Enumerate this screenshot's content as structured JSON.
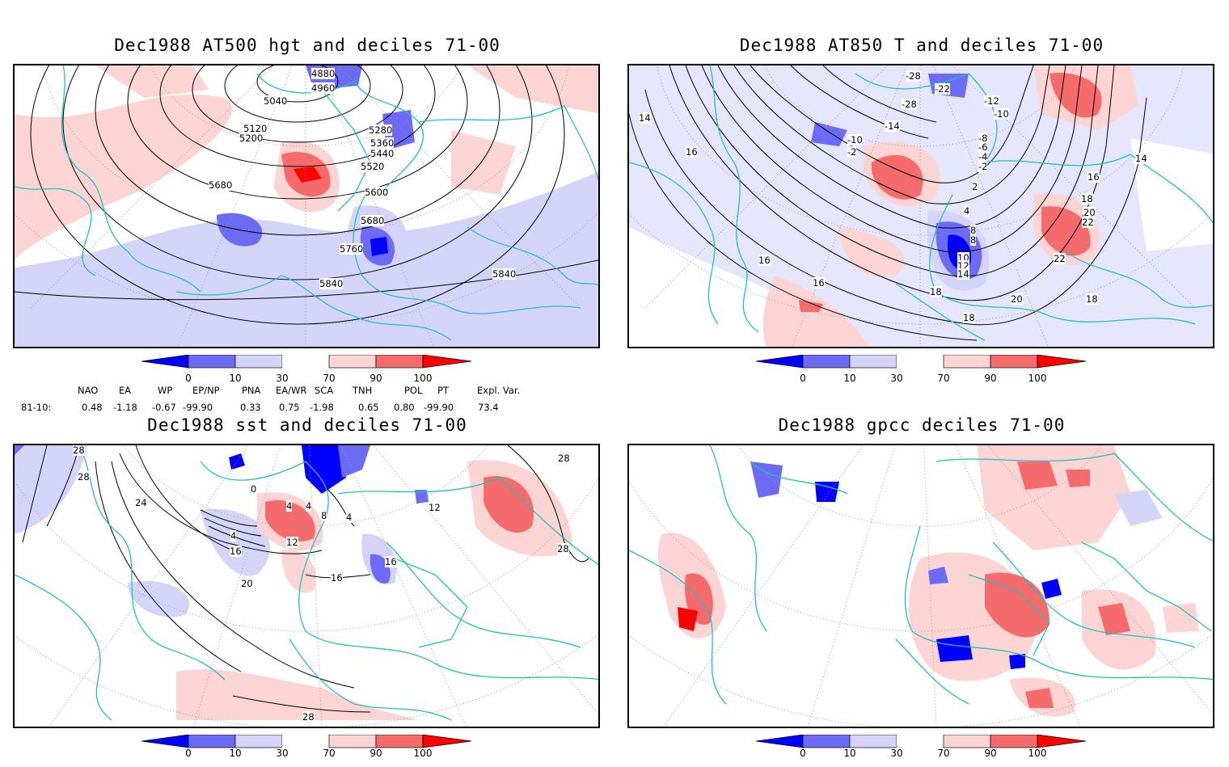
{
  "panels": [
    {
      "title": "Dec1988 AT500 hgt and deciles 71-00",
      "labels": [
        "4880",
        "4960",
        "5040",
        "5120",
        "5200",
        "5280",
        "5360",
        "5440",
        "5520",
        "5600",
        "5680",
        "5680",
        "5760",
        "5840",
        "5840"
      ]
    },
    {
      "title": "Dec1988 AT850 T and deciles 71-00",
      "labels": [
        "-28",
        "-22",
        "-28",
        "-14",
        "-12",
        "-10",
        "-8",
        "-6",
        "-4",
        "-2",
        "-10",
        "-2",
        "2",
        "4",
        "8",
        "8",
        "10",
        "12",
        "14",
        "14",
        "16",
        "16",
        "16",
        "16",
        "18",
        "18",
        "20",
        "22",
        "22",
        "18",
        "18",
        "20",
        "14"
      ]
    },
    {
      "title": "Dec1988 sst and deciles 71-00",
      "labels": [
        "28",
        "28",
        "24",
        "0",
        "4",
        "4",
        "4",
        "8",
        "12",
        "16",
        "20",
        "16",
        "16",
        "28",
        "28",
        "28",
        "4",
        "12"
      ]
    },
    {
      "title": "Dec1988 gpcc deciles 71-00",
      "labels": []
    }
  ],
  "colorbar": {
    "ticks": [
      "0",
      "10",
      "30",
      "70",
      "90",
      "100"
    ],
    "colors": [
      "#0000ff",
      "#6b6bf5",
      "#d4d4f8",
      "#ffffff",
      "#fdd4d4",
      "#f56b6b",
      "#ff0000"
    ]
  },
  "indices": {
    "header": [
      "NAO",
      "EA",
      "WP",
      "EP/NP",
      "PNA",
      "EA/WR",
      "SCA",
      "TNH",
      "POL",
      "PT",
      "Expl. Var."
    ],
    "row_label": "81-10:",
    "values": [
      "0.48",
      "-1.18",
      "-0.67",
      "-99.90",
      "0.33",
      "0.75",
      "-1.98",
      "0.65",
      "0.80",
      "-99.90",
      "73.4"
    ]
  },
  "colors": {
    "coast": "#20c0c0",
    "contour": "#000000",
    "grid": "#999999"
  }
}
